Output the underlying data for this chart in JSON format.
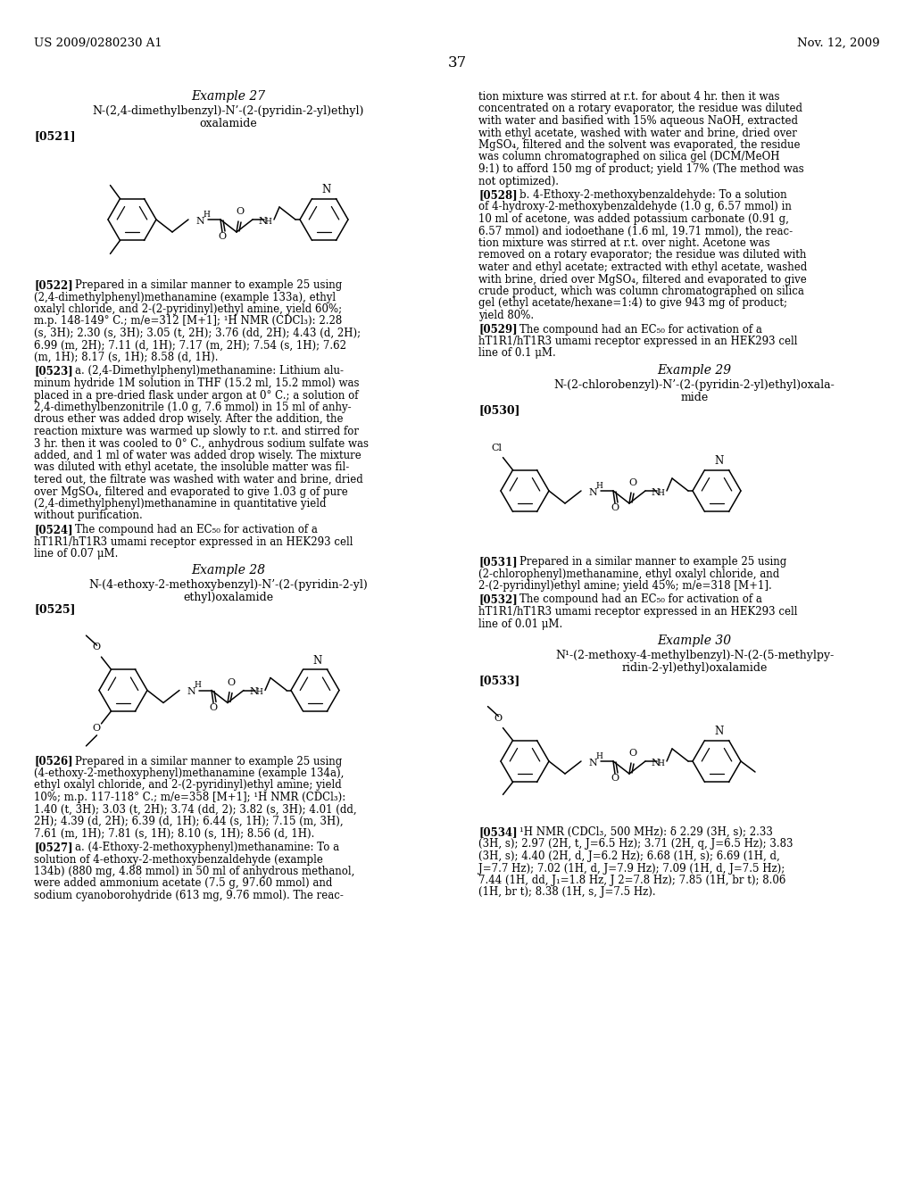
{
  "bg": "#ffffff",
  "header_left": "US 2009/0280230 A1",
  "header_right": "Nov. 12, 2009",
  "page_number": "37"
}
